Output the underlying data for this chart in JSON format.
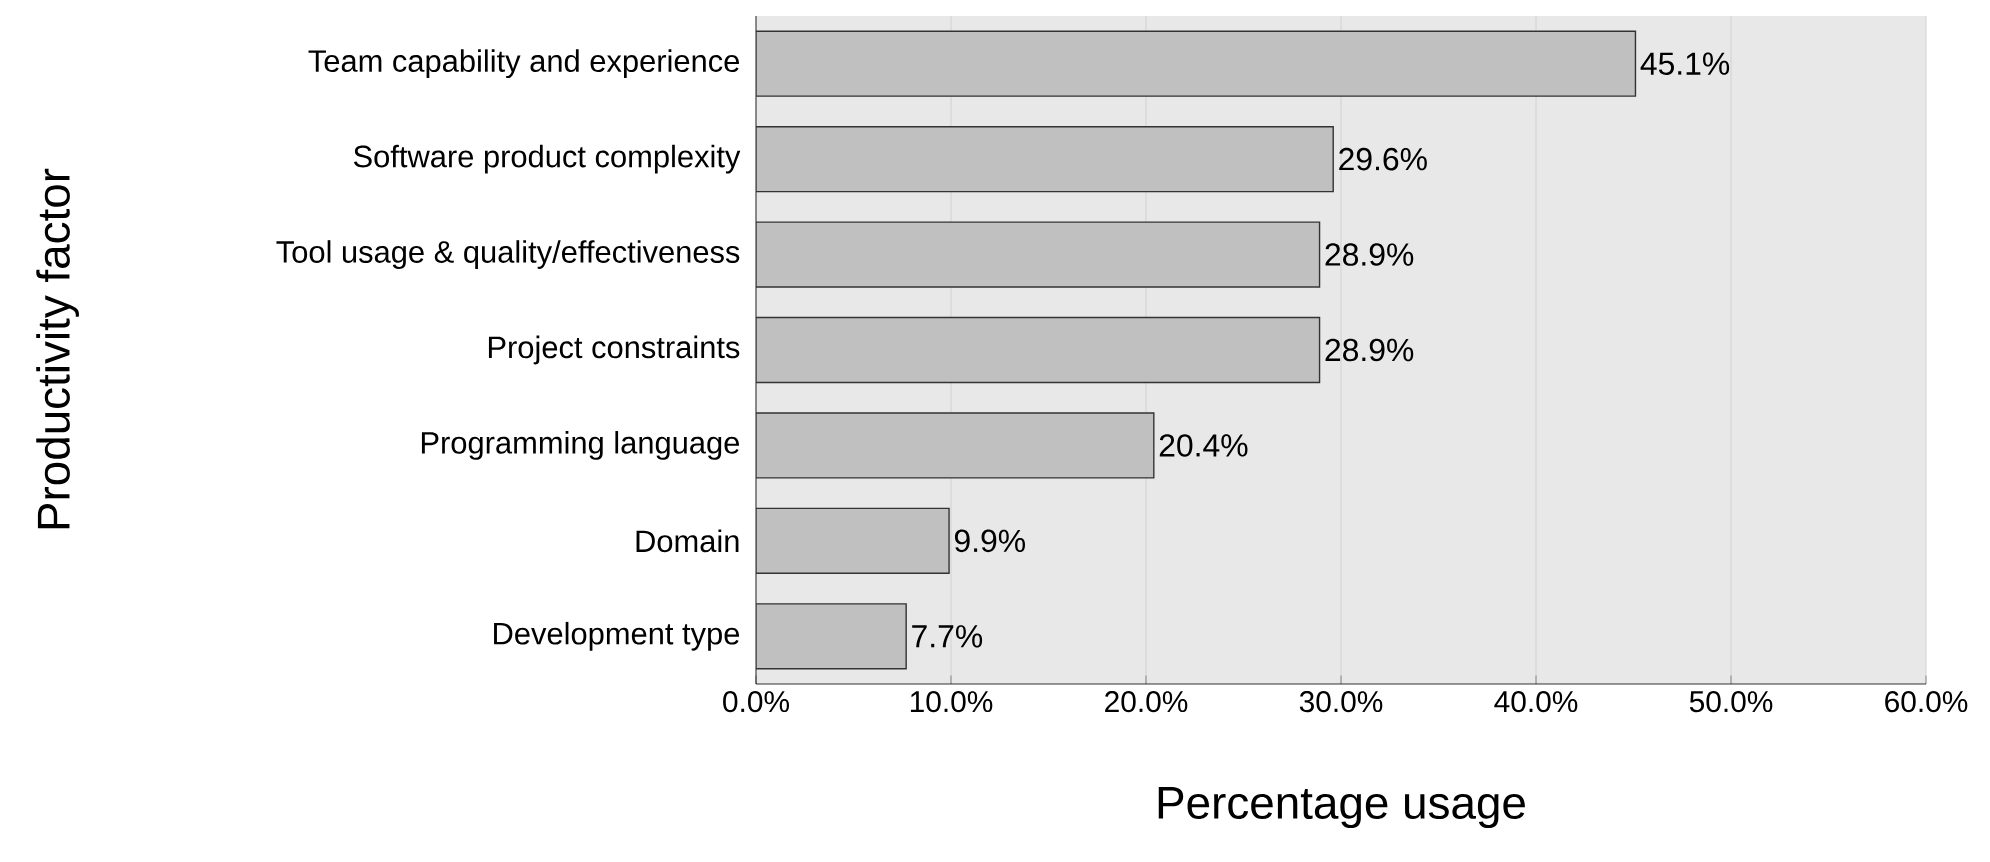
{
  "chart_data": {
    "type": "bar",
    "orientation": "horizontal",
    "xlabel": "Percentage usage",
    "ylabel": "Productivity factor",
    "categories": [
      "Team capability and experience",
      "Software product complexity",
      "Tool usage & quality/effectiveness",
      "Project constraints",
      "Programming language",
      "Domain",
      "Development type"
    ],
    "values": [
      45.1,
      29.6,
      28.9,
      28.9,
      20.4,
      9.9,
      7.7
    ],
    "value_labels": [
      "45.1%",
      "29.6%",
      "28.9%",
      "28.9%",
      "20.4%",
      "9.9%",
      "7.7%"
    ],
    "color": "#c0c0c0",
    "xlim": [
      0,
      60
    ],
    "xticks": [
      {
        "value": 0,
        "label": "0.0%"
      },
      {
        "value": 10,
        "label": "10.0%"
      },
      {
        "value": 20,
        "label": "20.0%"
      },
      {
        "value": 30,
        "label": "30.0%"
      },
      {
        "value": 40,
        "label": "40.0%"
      },
      {
        "value": 50,
        "label": "50.0%"
      },
      {
        "value": 60,
        "label": "60.0%"
      }
    ],
    "grid": "x"
  }
}
